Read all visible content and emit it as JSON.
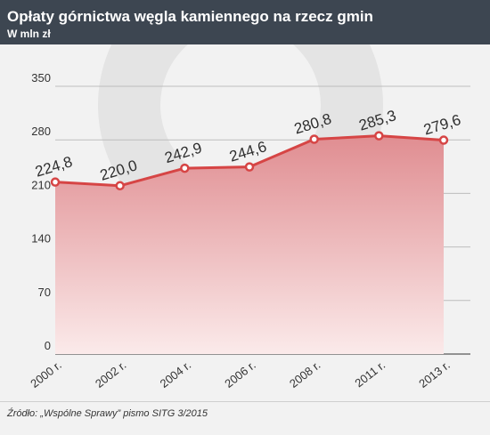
{
  "header": {
    "title": "Opłaty górnictwa węgla kamiennego na rzecz gmin",
    "subtitle": "W mln zł"
  },
  "source": "Źródło: „Wspólne Sprawy” pismo SITG 3/2015",
  "colors": {
    "header_bg": "#3d4651",
    "line": "#d64545",
    "fill_top": "#e08d91",
    "fill_bottom": "#fbeaea",
    "watermark": "#e4e4e4"
  },
  "chart_data": {
    "type": "area",
    "categories": [
      "2000 r.",
      "2002 r.",
      "2004 r.",
      "2006 r.",
      "2008 r.",
      "2011 r.",
      "2013 r."
    ],
    "values": [
      224.8,
      220.0,
      242.9,
      244.6,
      280.8,
      285.3,
      279.6
    ],
    "data_labels": [
      "224,8",
      "220,0",
      "242,9",
      "244,6",
      "280,8",
      "285,3",
      "279,6"
    ],
    "y_ticks": [
      0,
      70,
      140,
      210,
      280,
      350
    ],
    "ylim": [
      0,
      350
    ],
    "grid": true,
    "legend": "none"
  }
}
